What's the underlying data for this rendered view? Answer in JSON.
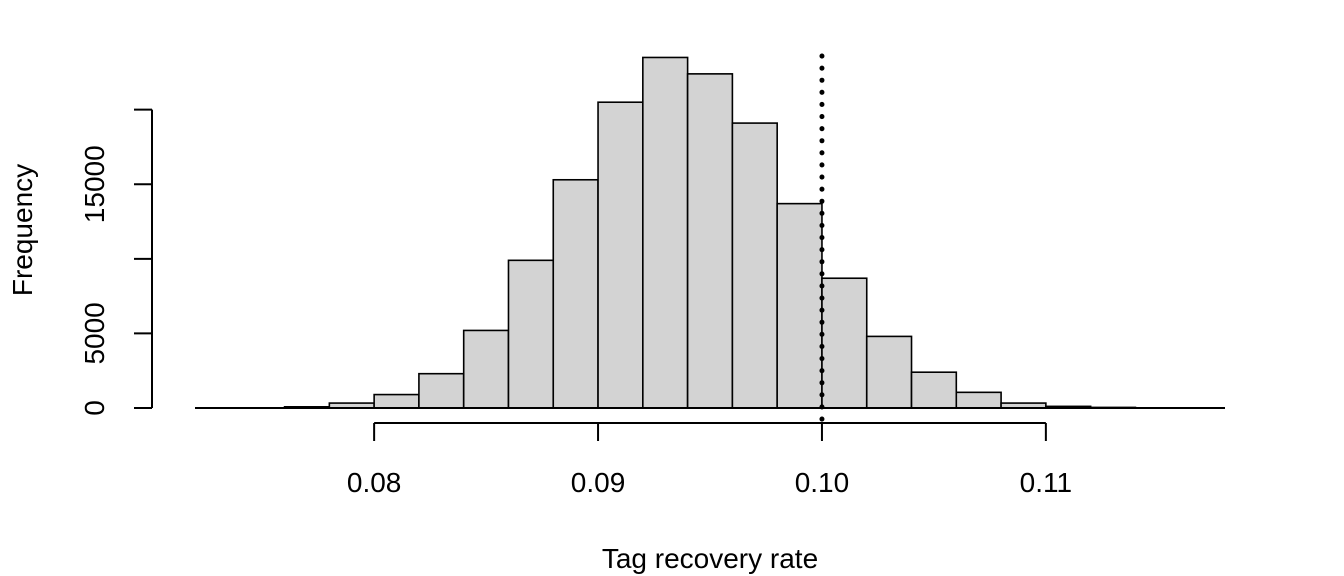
{
  "chart_data": {
    "type": "bar",
    "title": "",
    "xlabel": "Tag recovery rate",
    "ylabel": "Frequency",
    "bin_width": 0.002,
    "bin_starts": [
      0.076,
      0.078,
      0.08,
      0.082,
      0.084,
      0.086,
      0.088,
      0.09,
      0.092,
      0.094,
      0.096,
      0.098,
      0.1,
      0.102,
      0.104,
      0.106,
      0.108,
      0.11,
      0.112
    ],
    "values": [
      80,
      330,
      900,
      2300,
      5200,
      9900,
      15300,
      20500,
      23500,
      22400,
      19100,
      13700,
      8700,
      4800,
      2400,
      1050,
      330,
      110,
      40
    ],
    "xlim": [
      0.072,
      0.118
    ],
    "ylim": [
      0,
      24000
    ],
    "xticks": [
      0.08,
      0.09,
      0.1,
      0.11
    ],
    "xtick_labels": [
      "0.08",
      "0.09",
      "0.10",
      "0.11"
    ],
    "yticks": [
      0,
      5000,
      15000
    ],
    "ytick_labels": [
      "0",
      "5000",
      "15000"
    ],
    "ytick_marks": [
      0,
      5000,
      10000,
      15000,
      20000
    ],
    "reference_line": {
      "x": 0.1,
      "style": "dotted"
    },
    "bar_color": "#d3d3d3",
    "line_color": "#000000",
    "grid": false
  }
}
